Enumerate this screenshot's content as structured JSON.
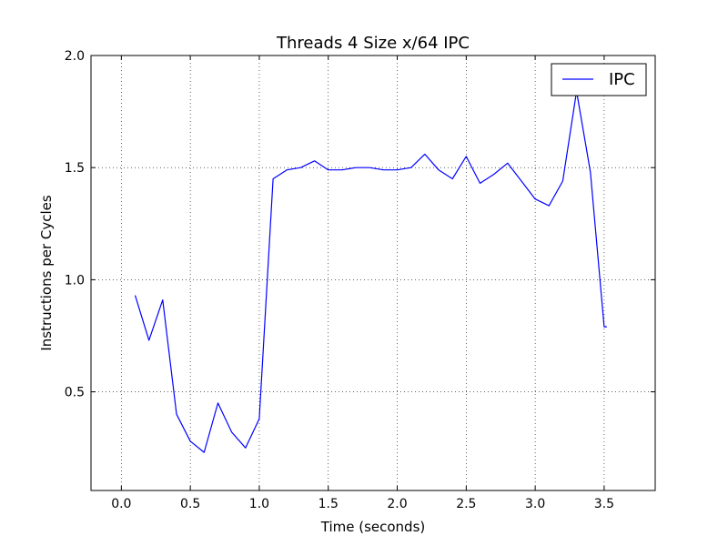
{
  "chart_data": {
    "type": "line",
    "title": "Threads 4 Size x/64 IPC",
    "xlabel": "Time (seconds)",
    "ylabel": "Instructions per Cycles",
    "xlim": [
      -0.22,
      3.87
    ],
    "ylim": [
      0.06,
      2.0
    ],
    "xticks": [
      "0.0",
      "0.5",
      "1.0",
      "1.5",
      "2.0",
      "2.5",
      "3.0",
      "3.5"
    ],
    "yticks": [
      "0.5",
      "1.0",
      "1.5",
      "2.0"
    ],
    "grid": true,
    "legend": {
      "position": "top-right",
      "entries": [
        "IPC"
      ]
    },
    "series": [
      {
        "name": "IPC",
        "color": "#0000ff",
        "x": [
          0.1,
          0.2,
          0.3,
          0.4,
          0.5,
          0.6,
          0.7,
          0.8,
          0.9,
          1.0,
          1.1,
          1.2,
          1.3,
          1.4,
          1.5,
          1.6,
          1.7,
          1.8,
          1.9,
          2.0,
          2.1,
          2.2,
          2.3,
          2.4,
          2.5,
          2.6,
          2.7,
          2.8,
          2.9,
          3.0,
          3.1,
          3.2,
          3.3,
          3.4,
          3.5,
          3.52
        ],
        "y": [
          0.93,
          0.73,
          0.91,
          0.4,
          0.28,
          0.23,
          0.45,
          0.32,
          0.25,
          0.38,
          1.45,
          1.49,
          1.5,
          1.53,
          1.49,
          1.49,
          1.5,
          1.5,
          1.49,
          1.49,
          1.5,
          1.56,
          1.49,
          1.45,
          1.55,
          1.43,
          1.47,
          1.52,
          1.44,
          1.36,
          1.33,
          1.44,
          1.84,
          1.48,
          0.79,
          0.79
        ]
      }
    ]
  }
}
